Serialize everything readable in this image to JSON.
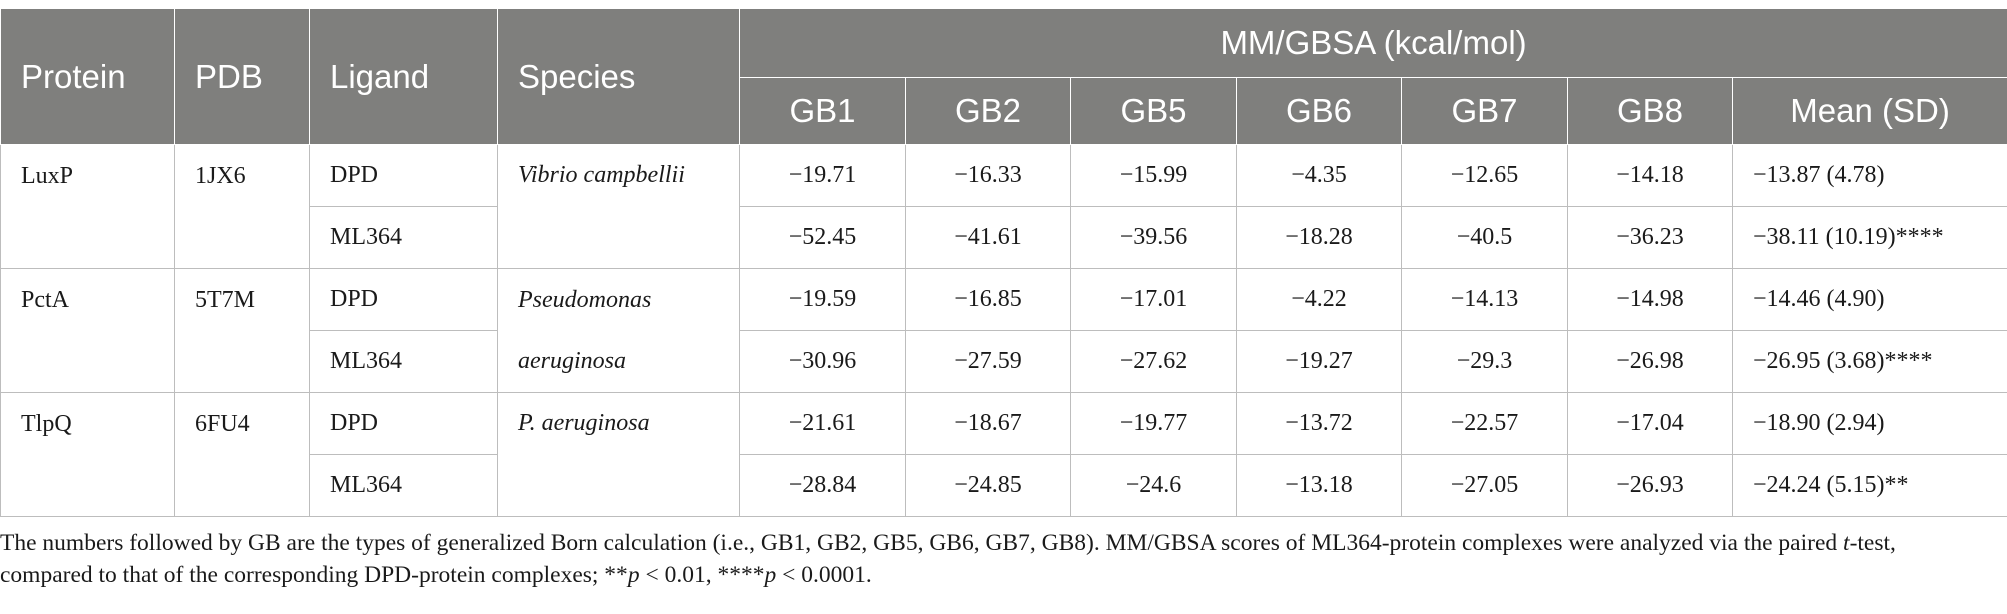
{
  "table": {
    "headers": {
      "protein": "Protein",
      "pdb": "PDB",
      "ligand": "Ligand",
      "species": "Species",
      "group": "MM/GBSA (kcal/mol)",
      "gb": [
        "GB1",
        "GB2",
        "GB5",
        "GB6",
        "GB7",
        "GB8",
        "Mean (SD)"
      ]
    },
    "groups": [
      {
        "protein": "LuxP",
        "pdb": "1JX6",
        "species": "Vibrio campbellii",
        "rows": [
          {
            "ligand": "DPD",
            "values": [
              "−19.71",
              "−16.33",
              "−15.99",
              "−4.35",
              "−12.65",
              "−14.18"
            ],
            "mean": "−13.87 (4.78)"
          },
          {
            "ligand": "ML364",
            "values": [
              "−52.45",
              "−41.61",
              "−39.56",
              "−18.28",
              "−40.5",
              "−36.23"
            ],
            "mean": "−38.11 (10.19)****"
          }
        ]
      },
      {
        "protein": "PctA",
        "pdb": "5T7M",
        "species": "Pseudomonas aeruginosa",
        "rows": [
          {
            "ligand": "DPD",
            "values": [
              "−19.59",
              "−16.85",
              "−17.01",
              "−4.22",
              "−14.13",
              "−14.98"
            ],
            "mean": "−14.46 (4.90)"
          },
          {
            "ligand": "ML364",
            "values": [
              "−30.96",
              "−27.59",
              "−27.62",
              "−19.27",
              "−29.3",
              "−26.98"
            ],
            "mean": "−26.95 (3.68)****"
          }
        ]
      },
      {
        "protein": "TlpQ",
        "pdb": "6FU4",
        "species": "P. aeruginosa",
        "rows": [
          {
            "ligand": "DPD",
            "values": [
              "−21.61",
              "−18.67",
              "−19.77",
              "−13.72",
              "−22.57",
              "−17.04"
            ],
            "mean": "−18.90 (2.94)"
          },
          {
            "ligand": "ML364",
            "values": [
              "−28.84",
              "−24.85",
              "−24.6",
              "−13.18",
              "−27.05",
              "−26.93"
            ],
            "mean": "−24.24 (5.15)**"
          }
        ]
      }
    ]
  },
  "footnote": {
    "part1": "The numbers followed by GB are the types of generalized Born calculation (i.e., GB1, GB2, GB5, GB6, GB7, GB8). MM/GBSA scores of ML364-protein complexes were analyzed via the paired ",
    "t": "t",
    "part2": "-test, compared to that of the corresponding DPD-protein complexes; **",
    "p1": "p",
    "part3": " < 0.01, ****",
    "p2": "p",
    "part4": " < 0.0001."
  }
}
